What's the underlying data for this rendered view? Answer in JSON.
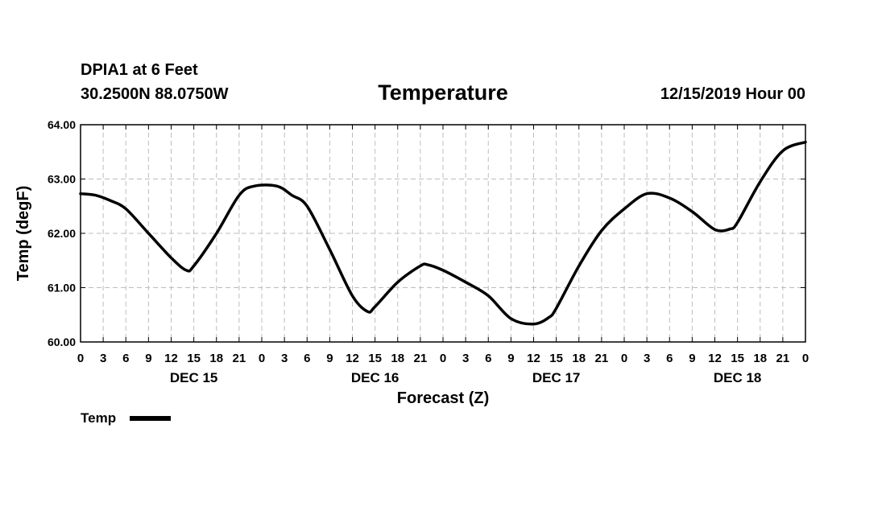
{
  "header": {
    "station": "DPIA1 at 6 Feet",
    "coords": "30.2500N 88.0750W",
    "title": "Temperature",
    "issued": "12/15/2019 Hour 00"
  },
  "chart_data": {
    "type": "line",
    "title": "Temperature",
    "xlabel": "Forecast (Z)",
    "ylabel": "Temp (degF)",
    "ylim": [
      60,
      64
    ],
    "xlim": [
      0,
      96
    ],
    "x_unit": "hours from 12/15/2019 00Z",
    "yticks": [
      "60.00",
      "61.00",
      "62.00",
      "63.00",
      "64.00"
    ],
    "xtick_labels": [
      "0",
      "3",
      "6",
      "9",
      "12",
      "15",
      "18",
      "21",
      "0",
      "3",
      "6",
      "9",
      "12",
      "15",
      "18",
      "21",
      "0",
      "3",
      "6",
      "9",
      "12",
      "15",
      "18",
      "21",
      "0",
      "3",
      "6",
      "9",
      "12",
      "15",
      "18",
      "21",
      "0"
    ],
    "day_labels": [
      "DEC 15",
      "DEC 16",
      "DEC 17",
      "DEC 18"
    ],
    "grid": true,
    "legend": "bottom-left",
    "series": [
      {
        "name": "Temp",
        "color": "#000000",
        "x": [
          0,
          2,
          4,
          6,
          9,
          12,
          14,
          15,
          18,
          21,
          23,
          26,
          28,
          30,
          33,
          36,
          38,
          39,
          42,
          45,
          46,
          48,
          51,
          54,
          57,
          60,
          62,
          63,
          66,
          69,
          72,
          75,
          78,
          81,
          84,
          86,
          87,
          90,
          93,
          96
        ],
        "y": [
          62.73,
          62.7,
          62.6,
          62.45,
          62.0,
          61.55,
          61.32,
          61.4,
          62.0,
          62.7,
          62.87,
          62.87,
          62.7,
          62.5,
          61.7,
          60.85,
          60.56,
          60.65,
          61.1,
          61.4,
          61.42,
          61.32,
          61.1,
          60.85,
          60.43,
          60.33,
          60.45,
          60.62,
          61.4,
          62.05,
          62.45,
          62.73,
          62.65,
          62.4,
          62.07,
          62.08,
          62.2,
          62.95,
          63.52,
          63.68
        ]
      }
    ]
  }
}
